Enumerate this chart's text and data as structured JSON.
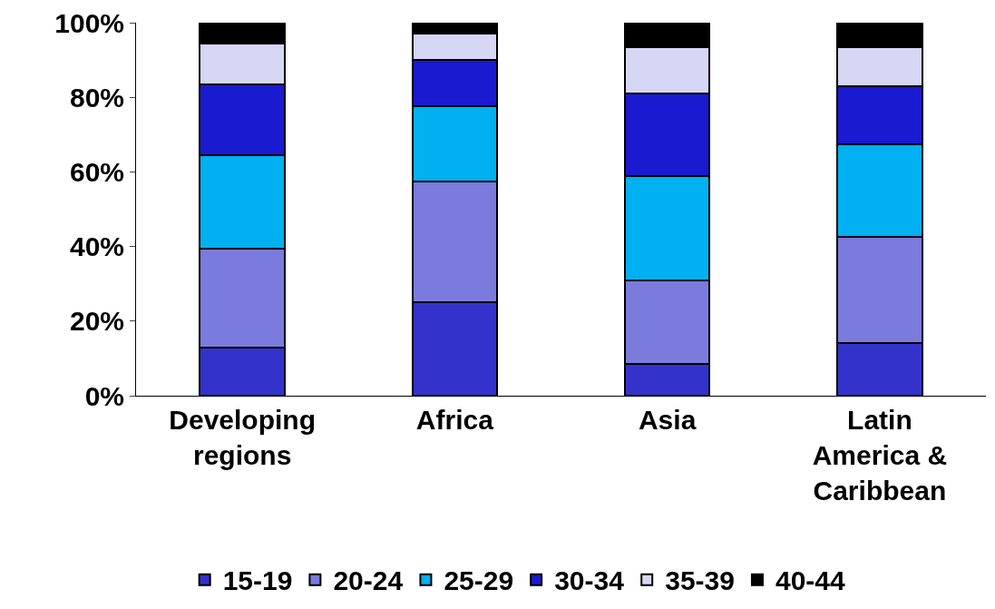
{
  "chart_data": {
    "type": "bar",
    "stacked": true,
    "categories": [
      "Developing regions",
      "Africa",
      "Asia",
      "Latin America & Caribbean"
    ],
    "series": [
      {
        "name": "15-19",
        "color": "#3333cc",
        "values": [
          13,
          25,
          8.5,
          14
        ]
      },
      {
        "name": "20-24",
        "color": "#7b7bdd",
        "values": [
          26.5,
          32.5,
          22.5,
          28.5
        ]
      },
      {
        "name": "25-29",
        "color": "#00b0f0",
        "values": [
          25,
          20,
          28,
          25
        ]
      },
      {
        "name": "30-34",
        "color": "#1a1ad0",
        "values": [
          19,
          12.5,
          22,
          15.5
        ]
      },
      {
        "name": "35-39",
        "color": "#d6d6f5",
        "values": [
          11,
          7,
          12.5,
          10.5
        ]
      },
      {
        "name": "40-44",
        "color": "#000000",
        "values": [
          5.5,
          3,
          6.5,
          6.5
        ]
      }
    ],
    "ylim": [
      0,
      100
    ],
    "yticks": [
      {
        "value": 0,
        "label": "0%"
      },
      {
        "value": 20,
        "label": "20%"
      },
      {
        "value": 40,
        "label": "40%"
      },
      {
        "value": 60,
        "label": "60%"
      },
      {
        "value": 80,
        "label": "80%"
      },
      {
        "value": 100,
        "label": "100%"
      }
    ],
    "grid": false,
    "legend": "bottom"
  }
}
